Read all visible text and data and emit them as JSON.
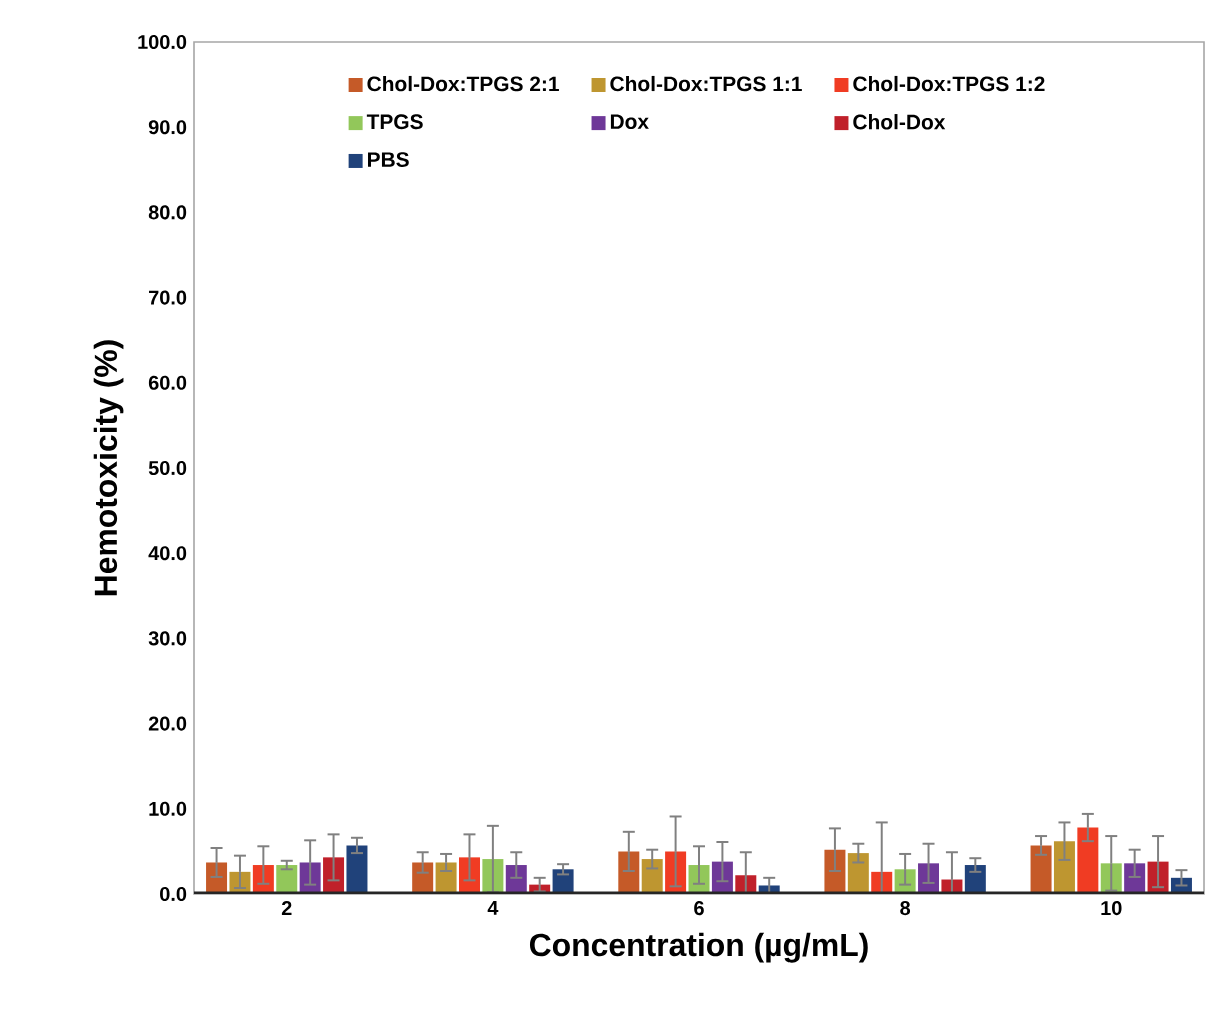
{
  "chart_data": {
    "type": "bar",
    "xlabel": "Concentration (µg/mL)",
    "ylabel": "Hemotoxicity (%)",
    "categories": [
      "2",
      "4",
      "6",
      "8",
      "10"
    ],
    "series": [
      {
        "name": "Chol-Dox:TPGS 2:1",
        "color": "#c55a28",
        "values": [
          3.7,
          3.7,
          5.0,
          5.2,
          5.7
        ],
        "errors": [
          1.7,
          1.2,
          2.3,
          2.5,
          1.1
        ]
      },
      {
        "name": "Chol-Dox:TPGS 1:1",
        "color": "#be9630",
        "values": [
          2.6,
          3.7,
          4.1,
          4.8,
          6.2
        ],
        "errors": [
          1.9,
          1.0,
          1.1,
          1.1,
          2.2
        ]
      },
      {
        "name": "Chol-Dox:TPGS 1:2",
        "color": "#f03c23",
        "values": [
          3.4,
          4.3,
          5.0,
          2.6,
          7.8
        ],
        "errors": [
          2.2,
          2.7,
          4.1,
          5.8,
          1.6
        ]
      },
      {
        "name": "TPGS",
        "color": "#92c75a",
        "values": [
          3.4,
          4.1,
          3.4,
          2.9,
          3.6
        ],
        "errors": [
          0.5,
          3.9,
          2.2,
          1.8,
          3.2
        ]
      },
      {
        "name": "Dox",
        "color": "#6e3898",
        "values": [
          3.7,
          3.4,
          3.8,
          3.6,
          3.6
        ],
        "errors": [
          2.6,
          1.5,
          2.3,
          2.3,
          1.6
        ]
      },
      {
        "name": "Chol-Dox",
        "color": "#c0202a",
        "values": [
          4.3,
          1.1,
          2.2,
          1.7,
          3.8
        ],
        "errors": [
          2.7,
          0.8,
          2.7,
          3.2,
          3.0
        ]
      },
      {
        "name": "PBS",
        "color": "#20427a",
        "values": [
          5.7,
          2.9,
          1.0,
          3.4,
          1.9
        ],
        "errors": [
          0.9,
          0.6,
          0.9,
          0.8,
          0.9
        ]
      }
    ],
    "ylim": [
      0,
      100
    ],
    "yticks": [
      {
        "value": 0,
        "label": "0.0"
      },
      {
        "value": 10,
        "label": "10.0"
      },
      {
        "value": 20,
        "label": "20.0"
      },
      {
        "value": 30,
        "label": "30.0"
      },
      {
        "value": 40,
        "label": "40.0"
      },
      {
        "value": 50,
        "label": "50.0"
      },
      {
        "value": 60,
        "label": "60.0"
      },
      {
        "value": 70,
        "label": "70.0"
      },
      {
        "value": 80,
        "label": "80.0"
      },
      {
        "value": 90,
        "label": "90.0"
      },
      {
        "value": 100,
        "label": "100.0"
      }
    ],
    "grid": false,
    "legend": "top"
  }
}
